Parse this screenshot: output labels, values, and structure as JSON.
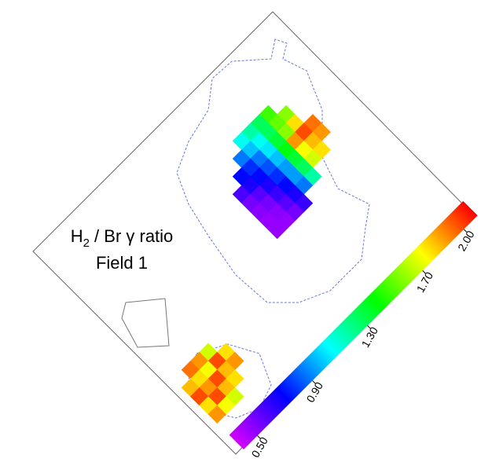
{
  "chart_data": {
    "type": "heatmap",
    "title": [
      "H",
      "2",
      " / Br γ ratio"
    ],
    "subtitle": "Field 1",
    "colormap": [
      "#d400ff",
      "#0000ff",
      "#00ffff",
      "#00ff00",
      "#ffff00",
      "#ff0000"
    ],
    "clim": [
      0.4,
      2.1
    ],
    "cticks": [
      {
        "value": 0.5,
        "label": "0.50"
      },
      {
        "value": 0.9,
        "label": "0.90"
      },
      {
        "value": 1.3,
        "label": "1.30"
      },
      {
        "value": 1.7,
        "label": "1.70"
      },
      {
        "value": 2.0,
        "label": "2.00"
      }
    ],
    "values": [
      [
        [
          null,
          null,
          null,
          1.95,
          1.9,
          null,
          null,
          null
        ],
        [
          null,
          1.6,
          1.8,
          2.0,
          1.85,
          1.8,
          null,
          null
        ],
        [
          1.5,
          1.55,
          1.6,
          1.9,
          1.75,
          1.7,
          null,
          null
        ],
        [
          1.3,
          1.3,
          1.35,
          1.4,
          1.35,
          1.3,
          1.2,
          null
        ],
        [
          1.2,
          1.1,
          1.05,
          1.0,
          0.95,
          0.95,
          0.9,
          null
        ],
        [
          1.1,
          1.0,
          0.9,
          0.85,
          0.8,
          0.75,
          0.7,
          0.65
        ],
        [
          null,
          0.9,
          0.8,
          0.75,
          0.7,
          0.65,
          0.6,
          0.55
        ],
        [
          null,
          null,
          0.75,
          0.7,
          0.6,
          0.55,
          0.52,
          0.5
        ],
        [
          null,
          null,
          null,
          0.62,
          0.55,
          0.52,
          0.5,
          0.5
        ]
      ],
      [
        [
          null,
          1.8,
          1.9,
          null,
          null
        ],
        [
          1.7,
          2.0,
          1.85,
          1.8,
          null
        ],
        [
          1.9,
          1.75,
          2.0,
          1.85,
          1.7
        ],
        [
          1.95,
          1.8,
          1.9,
          2.0,
          1.75
        ],
        [
          null,
          1.85,
          2.0,
          1.8,
          1.9
        ]
      ]
    ]
  }
}
